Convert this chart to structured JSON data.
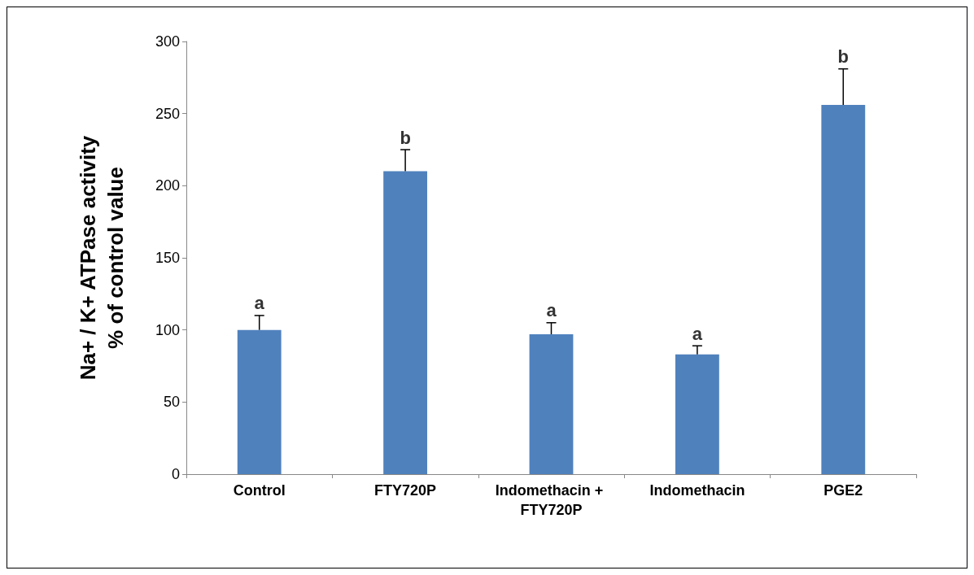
{
  "chart_data": {
    "type": "bar",
    "ylabel": "Na+ / K+ ATPase activity\n% of control value",
    "categories": [
      "Control",
      "FTY720P",
      "Indomethacin + FTY720P",
      "Indomethacin",
      "PGE2"
    ],
    "values": [
      100,
      210,
      97,
      83,
      256
    ],
    "errors": [
      [
        100,
        110
      ],
      [
        210,
        225
      ],
      [
        97,
        105
      ],
      [
        83,
        89
      ],
      [
        256,
        281
      ]
    ],
    "color": "#4f81bd",
    "ylim": [
      0,
      300
    ],
    "yticks": [
      0,
      50,
      100,
      150,
      200,
      250,
      300
    ],
    "grid": false,
    "annotations": [
      {
        "text": "a",
        "x": "Control",
        "y": 110
      },
      {
        "text": "b",
        "x": "FTY720P",
        "y": 225
      },
      {
        "text": "a",
        "x": "Indomethacin + FTY720P",
        "y": 105
      },
      {
        "text": "a",
        "x": "Indomethacin",
        "y": 89
      },
      {
        "text": "b",
        "x": "PGE2",
        "y": 281
      }
    ]
  }
}
